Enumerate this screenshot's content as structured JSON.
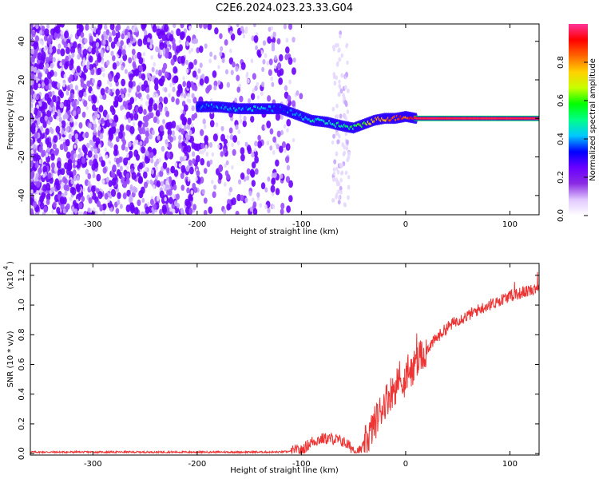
{
  "title": "C2E6.2024.023.23.33.G04",
  "chart_data": [
    {
      "type": "heatmap",
      "xlabel": "Height of straight line (km)",
      "ylabel": "Frequency (Hz)",
      "xlim": [
        -360,
        128
      ],
      "ylim": [
        -50,
        49
      ],
      "x_ticks": [
        -300,
        -200,
        -100,
        0,
        100
      ],
      "y_ticks": [
        -40,
        -20,
        0,
        20,
        40
      ],
      "colorbar": {
        "label": "Normalized spectral amplitude",
        "range": [
          0.0,
          1.0
        ],
        "ticks": [
          "0.0",
          "0.2",
          "0.4",
          "0.6",
          "0.8"
        ],
        "colors": [
          "#ffffff",
          "#e0c8ff",
          "#8a2be2",
          "#6a00ff",
          "#0000ff",
          "#00c8ff",
          "#00ff88",
          "#00ff00",
          "#c8ff00",
          "#ffd000",
          "#ff6600",
          "#ff0000",
          "#ff3399"
        ]
      },
      "signal_track": {
        "x": [
          -200,
          -180,
          -160,
          -140,
          -120,
          -105,
          -90,
          -75,
          -60,
          -50,
          -40,
          -30,
          -20,
          -10,
          0,
          10,
          50,
          128
        ],
        "y": [
          6,
          6,
          5,
          5,
          5,
          2,
          -1,
          -2,
          -4,
          -5,
          -3,
          -1,
          0,
          0,
          1,
          0,
          0,
          0
        ],
        "peak_amplitude": [
          0.35,
          0.38,
          0.4,
          0.42,
          0.35,
          0.4,
          0.45,
          0.45,
          0.5,
          0.55,
          0.6,
          0.75,
          0.8,
          0.85,
          0.85,
          0.95,
          0.9,
          0.9
        ]
      }
    },
    {
      "type": "line",
      "xlabel": "Height of straight line (km)",
      "ylabel": "SNR (10 * v/v)",
      "y_multiplier": "(x10",
      "y_multiplier_exp": "4",
      "xlim": [
        -360,
        128
      ],
      "ylim": [
        -0.01,
        1.28
      ],
      "x_ticks": [
        -300,
        -200,
        -100,
        0,
        100
      ],
      "y_ticks": [
        "0.0",
        "0.2",
        "0.4",
        "0.6",
        "0.8",
        "1.0",
        "1.2"
      ],
      "color": "#ee3333",
      "series": [
        {
          "x": [
            -360,
            -300,
            -200,
            -120,
            -100,
            -90,
            -80,
            -70,
            -60,
            -50,
            -45,
            -40,
            -30,
            -20,
            -10,
            0,
            10,
            20,
            30,
            40,
            50,
            60,
            70,
            80,
            90,
            100,
            110,
            120,
            128
          ],
          "values": [
            0.01,
            0.01,
            0.01,
            0.01,
            0.02,
            0.08,
            0.1,
            0.1,
            0.08,
            0.03,
            0.01,
            0.05,
            0.2,
            0.35,
            0.45,
            0.5,
            0.6,
            0.7,
            0.78,
            0.85,
            0.9,
            0.93,
            0.97,
            1.0,
            1.03,
            1.06,
            1.08,
            1.1,
            1.13
          ]
        }
      ]
    }
  ]
}
